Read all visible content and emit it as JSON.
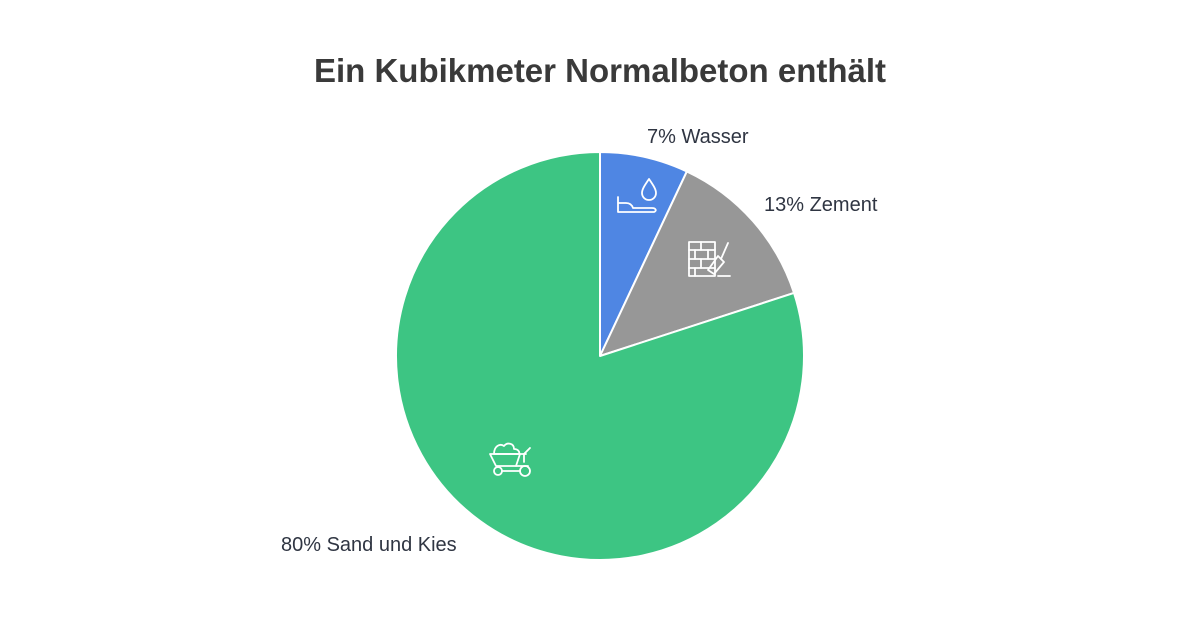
{
  "chart_data": {
    "type": "pie",
    "title": "Ein Kubikmeter Normalbeton enthält",
    "slices": [
      {
        "label": "7% Wasser",
        "value": 7,
        "color": "#4f86e3",
        "icon": "water-drop-icon"
      },
      {
        "label": "13% Zement",
        "value": 13,
        "color": "#979797",
        "icon": "brick-wall-trowel-icon"
      },
      {
        "label": "80% Sand und Kies",
        "value": 80,
        "color": "#3dc583",
        "icon": "wheelbarrow-icon"
      }
    ],
    "start": "12 o'clock",
    "direction": "clockwise"
  }
}
